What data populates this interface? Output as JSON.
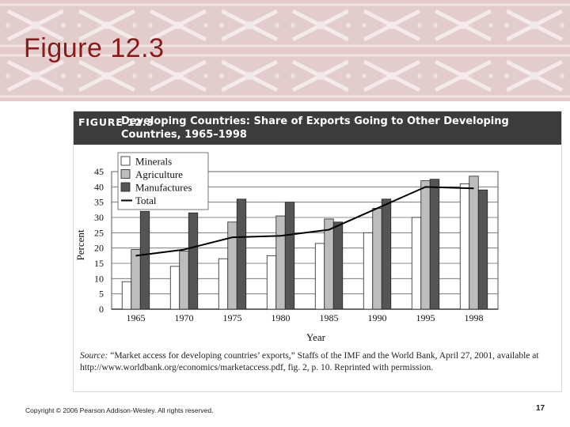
{
  "slide": {
    "title": "Figure 12.3",
    "copyright": "Copyright © 2006 Pearson Addison-Wesley. All rights reserved.",
    "page_number": "17",
    "title_color": "#8b1a1a",
    "banner_color": "#e3cccc"
  },
  "figure": {
    "label": "FIGURE 12.3",
    "title": "Developing Countries: Share of Exports Going to Other Developing Countries, 1965–1998",
    "source_label": "Source:",
    "source_text": " “Market access for developing countries’ exports,” Staffs of the IMF and the World Bank, April 27, 2001, available at http://www.worldbank.org/economics/marketaccess.pdf, fig. 2, p. 10. Reprinted with permission."
  },
  "chart_data": {
    "type": "bar",
    "categories": [
      "1965",
      "1970",
      "1975",
      "1980",
      "1985",
      "1990",
      "1995",
      "1998"
    ],
    "series": [
      {
        "name": "Minerals",
        "kind": "bar",
        "color": "#ffffff",
        "values": [
          9,
          14,
          16.5,
          17.5,
          21.5,
          25,
          30,
          41
        ]
      },
      {
        "name": "Agriculture",
        "kind": "bar",
        "color": "#bdbdbd",
        "values": [
          19.5,
          19,
          28.5,
          30.5,
          29.5,
          33,
          42,
          43.5
        ]
      },
      {
        "name": "Manufactures",
        "kind": "bar",
        "color": "#555555",
        "values": [
          32,
          31.5,
          36,
          35,
          28.5,
          36,
          42.5,
          39
        ]
      },
      {
        "name": "Total",
        "kind": "line",
        "color": "#000000",
        "values": [
          17.5,
          19.5,
          23.5,
          24,
          26,
          33,
          40,
          39.5
        ]
      }
    ],
    "xlabel": "Year",
    "ylabel": "Percent",
    "ylim": [
      0,
      45
    ],
    "yticks": [
      0,
      5,
      10,
      15,
      20,
      25,
      30,
      35,
      40,
      45
    ],
    "grid": true,
    "legend_position": "top-left"
  }
}
